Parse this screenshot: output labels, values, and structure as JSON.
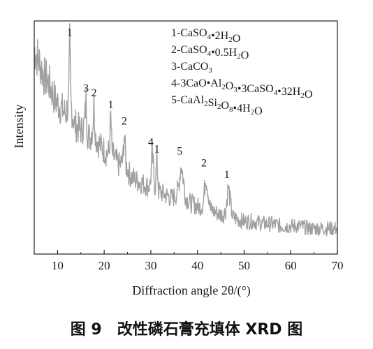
{
  "chart_data": {
    "type": "line",
    "title": "",
    "xlabel": "Diffraction angle 2θ/(°)",
    "ylabel": "Intensity",
    "xlim": [
      5,
      70
    ],
    "x_ticks": [
      10,
      20,
      30,
      40,
      50,
      60,
      70
    ],
    "y_ticks_shown": false,
    "grid": false,
    "line_color": "#a0a0a0",
    "series": [
      {
        "values_note_free": true,
        "x": [
          5.0,
          5.8,
          6.5,
          7.2,
          8.0,
          8.8,
          9.5,
          10.3,
          11.0,
          11.8,
          12.4,
          12.6,
          12.9,
          13.6,
          14.4,
          15.2,
          15.8,
          16.1,
          16.4,
          17.0,
          17.5,
          17.8,
          18.2,
          19.0,
          19.8,
          20.6,
          21.1,
          21.4,
          21.7,
          22.5,
          23.3,
          24.0,
          24.3,
          24.7,
          25.5,
          26.5,
          27.5,
          28.5,
          29.5,
          29.9,
          30.3,
          30.9,
          31.3,
          31.7,
          32.5,
          33.5,
          34.5,
          35.3,
          35.9,
          36.5,
          37.5,
          38.5,
          39.5,
          40.4,
          41.2,
          41.8,
          42.8,
          43.8,
          44.8,
          45.6,
          46.1,
          46.6,
          47.5,
          48.5,
          50.0,
          52.0,
          54.0,
          56.0,
          58.0,
          60.0,
          62.0,
          64.0,
          66.0,
          68.0,
          70.0
        ],
        "y": [
          88,
          84,
          80,
          76,
          74,
          70,
          66,
          64,
          62,
          60,
          66,
          90,
          64,
          56,
          54,
          53,
          56,
          66,
          52,
          50,
          54,
          64,
          50,
          47,
          45,
          43,
          44,
          59,
          43,
          40,
          38,
          40,
          52,
          38,
          34,
          32,
          31,
          30,
          29,
          30,
          43,
          28,
          40,
          27,
          26,
          25,
          24,
          25,
          28,
          39,
          24,
          22,
          21,
          20,
          21,
          34,
          19,
          18,
          17,
          17,
          19,
          29,
          16,
          15,
          14,
          14,
          13,
          13,
          12,
          12,
          12,
          11,
          11,
          11,
          11
        ]
      }
    ],
    "peak_labels": [
      {
        "text": "1",
        "x": 12.6,
        "y": 90
      },
      {
        "text": "3",
        "x": 16.1,
        "y": 66
      },
      {
        "text": "2",
        "x": 17.8,
        "y": 64
      },
      {
        "text": "1",
        "x": 21.4,
        "y": 59
      },
      {
        "text": "2",
        "x": 24.3,
        "y": 52
      },
      {
        "text": "4",
        "x": 30.0,
        "y": 43
      },
      {
        "text": "1",
        "x": 31.3,
        "y": 40
      },
      {
        "text": "5",
        "x": 36.2,
        "y": 39
      },
      {
        "text": "2",
        "x": 41.4,
        "y": 34
      },
      {
        "text": "1",
        "x": 46.3,
        "y": 29
      }
    ],
    "legend": {
      "placement": "top-right",
      "entries": [
        {
          "num": "1-",
          "parts": [
            [
              "CaSO",
              ""
            ],
            [
              "4",
              "sub"
            ],
            [
              "•2H",
              ""
            ],
            [
              "2",
              "sub"
            ],
            [
              "O",
              ""
            ]
          ]
        },
        {
          "num": "2-",
          "parts": [
            [
              "CaSO",
              ""
            ],
            [
              "4",
              "sub"
            ],
            [
              "•0.5H",
              ""
            ],
            [
              "2",
              "sub"
            ],
            [
              "O",
              ""
            ]
          ]
        },
        {
          "num": "3-",
          "parts": [
            [
              "CaCO",
              ""
            ],
            [
              "3",
              "sub"
            ]
          ]
        },
        {
          "num": "4-",
          "parts": [
            [
              "3CaO•Al",
              ""
            ],
            [
              "2",
              "sub"
            ],
            [
              "O",
              ""
            ],
            [
              "3",
              "sub"
            ],
            [
              "•3CaSO",
              ""
            ],
            [
              "4",
              "sub"
            ],
            [
              "•32H",
              ""
            ],
            [
              "2",
              "sub"
            ],
            [
              "O",
              ""
            ]
          ]
        },
        {
          "num": "5-",
          "parts": [
            [
              "CaAl",
              ""
            ],
            [
              "2",
              "sub"
            ],
            [
              "Si",
              ""
            ],
            [
              "2",
              "sub"
            ],
            [
              "O",
              ""
            ],
            [
              "8",
              "sub"
            ],
            [
              "•4H",
              ""
            ],
            [
              "2",
              "sub"
            ],
            [
              "O",
              ""
            ]
          ]
        }
      ]
    }
  },
  "caption": "图 9　改性磷石膏充填体 XRD 图"
}
